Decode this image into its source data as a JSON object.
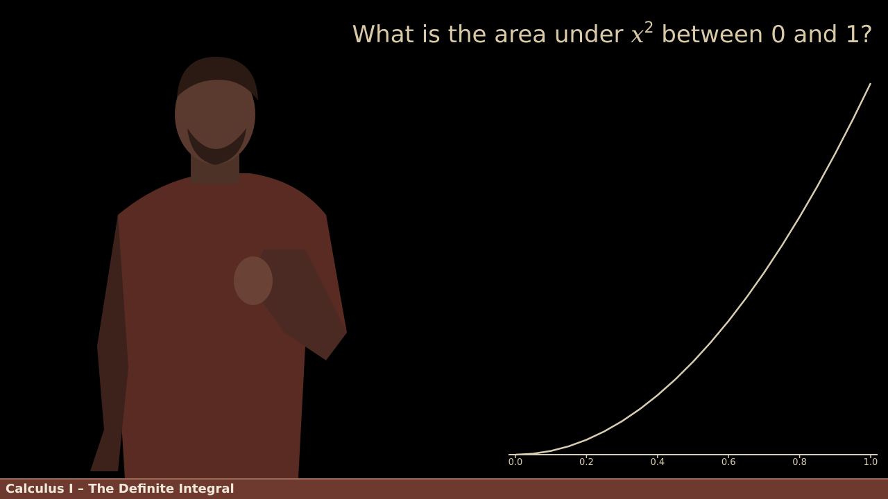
{
  "title": {
    "prefix": "What is the area under ",
    "variable": "x",
    "exponent": "2",
    "suffix": " between 0 and 1?"
  },
  "footer": {
    "course_label": "Calculus I – The Definite Integral"
  },
  "colors": {
    "curve": "#d8cdb0",
    "axis": "#d8cdb0",
    "tick_label": "#d8cdb0",
    "footer_bar": "#6e3a30",
    "shirt": "#5c2a22"
  },
  "chart_data": {
    "type": "line",
    "function": "x^2",
    "xlim": [
      0,
      1
    ],
    "ylim": [
      0,
      1
    ],
    "x_ticks": [
      "0.0",
      "0.2",
      "0.4",
      "0.6",
      "0.8",
      "1.0"
    ],
    "x_tick_values": [
      0,
      0.2,
      0.4,
      0.6,
      0.8,
      1.0
    ],
    "series": [
      {
        "x": [
          0,
          0.05,
          0.1,
          0.15,
          0.2,
          0.25,
          0.3,
          0.35,
          0.4,
          0.45,
          0.5,
          0.55,
          0.6,
          0.65,
          0.7,
          0.75,
          0.8,
          0.85,
          0.9,
          0.95,
          1.0
        ],
        "y": [
          0,
          0.0025,
          0.01,
          0.0225,
          0.04,
          0.0625,
          0.09,
          0.1225,
          0.16,
          0.2025,
          0.25,
          0.3025,
          0.36,
          0.4225,
          0.49,
          0.5625,
          0.64,
          0.7225,
          0.81,
          0.9025,
          1.0
        ]
      }
    ],
    "grid": false
  }
}
